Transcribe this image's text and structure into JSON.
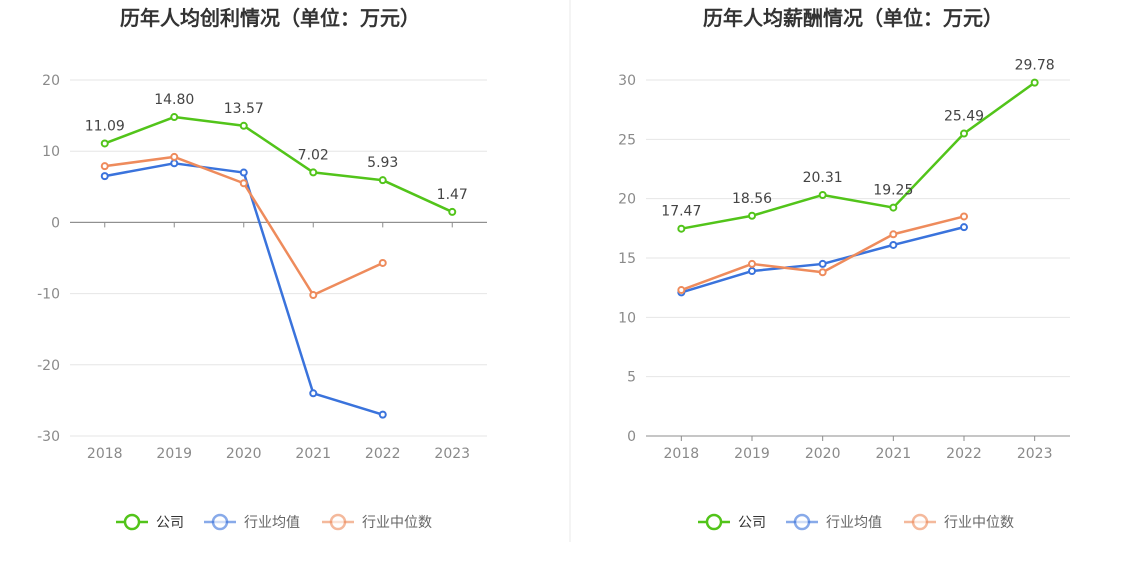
{
  "charts": [
    {
      "chart_data": {
        "type": "line",
        "title": "历年人均创利情况（单位：万元）",
        "categories": [
          "2018",
          "2019",
          "2020",
          "2021",
          "2022",
          "2023"
        ],
        "ylim": [
          -30,
          20
        ],
        "yticks": [
          20,
          10,
          0,
          -10,
          -20,
          -30
        ],
        "grid": true,
        "legend_position": "bottom-center",
        "series": [
          {
            "name": "公司",
            "color": "#52c41a",
            "values": [
              11.09,
              14.8,
              13.57,
              7.02,
              5.93,
              1.47
            ],
            "labels": [
              "11.09",
              "14.80",
              "13.57",
              "7.02",
              "5.93",
              "1.47"
            ]
          },
          {
            "name": "行业均值",
            "color": "#3a73dc",
            "values": [
              6.5,
              8.3,
              7.0,
              -24.0,
              -27.0,
              null
            ]
          },
          {
            "name": "行业中位数",
            "color": "#ee8b5c",
            "values": [
              7.9,
              9.2,
              5.5,
              -10.2,
              -5.7,
              null
            ]
          }
        ]
      }
    },
    {
      "chart_data": {
        "type": "line",
        "title": "历年人均薪酬情况（单位：万元）",
        "categories": [
          "2018",
          "2019",
          "2020",
          "2021",
          "2022",
          "2023"
        ],
        "ylim": [
          0,
          30
        ],
        "yticks": [
          30,
          25,
          20,
          15,
          10,
          5,
          0
        ],
        "grid": true,
        "legend_position": "bottom-center",
        "series": [
          {
            "name": "公司",
            "color": "#52c41a",
            "values": [
              17.47,
              18.56,
              20.31,
              19.25,
              25.49,
              29.78
            ],
            "labels": [
              "17.47",
              "18.56",
              "20.31",
              "19.25",
              "25.49",
              "29.78"
            ]
          },
          {
            "name": "行业均值",
            "color": "#3a73dc",
            "values": [
              12.1,
              13.9,
              14.5,
              16.1,
              17.6,
              null
            ]
          },
          {
            "name": "行业中位数",
            "color": "#ee8b5c",
            "values": [
              12.3,
              14.5,
              13.8,
              17.0,
              18.5,
              null
            ]
          }
        ]
      }
    }
  ]
}
